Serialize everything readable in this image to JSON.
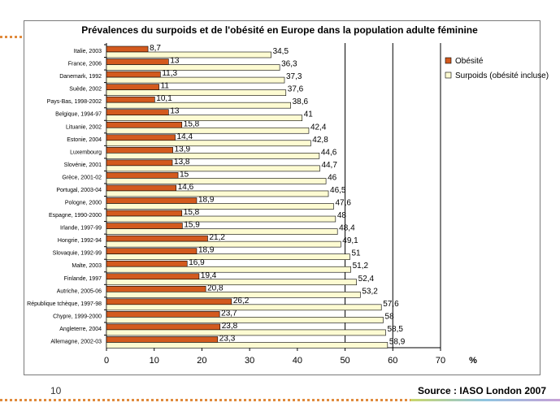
{
  "page_number": "10",
  "source": "Source : IASO London 2007",
  "colors": {
    "obesity": "#d35a1e",
    "overweight": "#fdfbd2",
    "grid": "#000000"
  },
  "chart_data": {
    "type": "bar",
    "orientation": "horizontal",
    "title": "Prévalences du surpoids et de l'obésité en Europe dans la population adulte féminine",
    "xlabel": "%",
    "xlim": [
      0,
      70
    ],
    "xticks": [
      "0",
      "10",
      "20",
      "30",
      "40",
      "50",
      "60",
      "70"
    ],
    "categories": [
      "Italie, 2003",
      "France, 2006",
      "Danemark, 1992",
      "Suède, 2002",
      "Pays-Bas, 1998-2002",
      "Belgique, 1994-97",
      "Lituanie, 2002",
      "Estonie, 2004",
      "Luxembourg",
      "Slovénie, 2001",
      "Grèce, 2001-02",
      "Portugal, 2003-04",
      "Pologne, 2000",
      "Espagne, 1990-2000",
      "Irlande, 1997-99",
      "Hongrie, 1992-94",
      "Slovaquie, 1992-99",
      "Malte, 2003",
      "Finlande, 1997",
      "Autriche, 2005-06",
      "République tchèque, 1997-98",
      "Chypre, 1999-2000",
      "Angleterre, 2004",
      "Allemagne, 2002-03"
    ],
    "series": [
      {
        "name": "Obésité",
        "values": [
          8.7,
          13,
          11.3,
          11,
          10.1,
          13,
          15.8,
          14.4,
          13.9,
          13.8,
          15,
          14.6,
          18.9,
          15.8,
          15.9,
          21.2,
          18.9,
          16.9,
          19.4,
          20.8,
          26.2,
          23.7,
          23.8,
          23.3
        ],
        "labels": [
          "8,7",
          "13",
          "11,3",
          "11",
          "10,1",
          "13",
          "15,8",
          "14,4",
          "13,9",
          "13,8",
          "15",
          "14,6",
          "18,9",
          "15,8",
          "15,9",
          "21,2",
          "18,9",
          "16,9",
          "19,4",
          "20,8",
          "26,2",
          "23,7",
          "23,8",
          "23,3"
        ]
      },
      {
        "name": "Surpoids (obésité incluse)",
        "values": [
          34.5,
          36.3,
          37.3,
          37.6,
          38.6,
          41,
          42.4,
          42.8,
          44.6,
          44.7,
          46,
          46.5,
          47.6,
          48,
          48.4,
          49.1,
          51,
          51.2,
          52.4,
          53.2,
          57.6,
          58,
          58.5,
          58.9
        ],
        "labels": [
          "34,5",
          "36,3",
          "37,3",
          "37,6",
          "38,6",
          "41",
          "42,4",
          "42,8",
          "44,6",
          "44,7",
          "46",
          "46,5",
          "47,6",
          "48",
          "48,4",
          "49,1",
          "51",
          "51,2",
          "52,4",
          "53,2",
          "57,6",
          "58",
          "58,5",
          "58,9"
        ]
      }
    ],
    "legend": [
      {
        "label": "Obésité",
        "series": 0
      },
      {
        "label": "Surpoids (obésité incluse)",
        "series": 1
      }
    ],
    "gridlines": [
      50,
      60,
      70
    ],
    "legend_position": "top-right"
  }
}
